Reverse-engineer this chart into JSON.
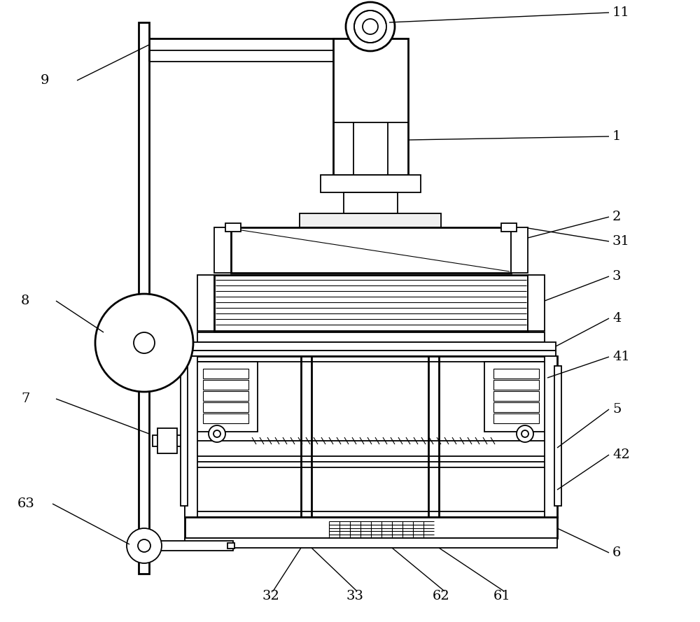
{
  "bg_color": "#ffffff",
  "line_color": "#000000",
  "lw": 1.3,
  "lw_thick": 2.0,
  "lw_thin": 0.8,
  "fig_width": 10.0,
  "fig_height": 8.89
}
